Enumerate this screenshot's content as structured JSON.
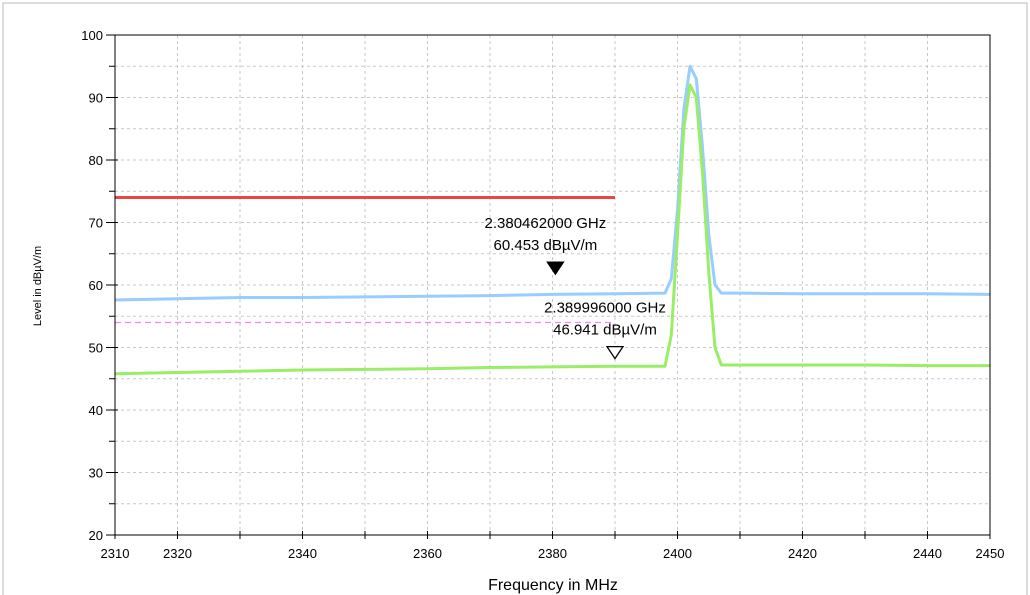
{
  "chart_data": {
    "type": "line",
    "xlabel": "Frequency in MHz",
    "ylabel": "Level in dBµV/m",
    "xlim": [
      2310,
      2450
    ],
    "ylim": [
      20,
      100
    ],
    "x_ticks": [
      2310,
      2320,
      2340,
      2360,
      2380,
      2400,
      2420,
      2440,
      2450
    ],
    "x_tick_labels": [
      "2310",
      "2320",
      "2340",
      "2360",
      "2380",
      "2400",
      "2420",
      "2440",
      "2450"
    ],
    "y_ticks": [
      20,
      30,
      40,
      50,
      60,
      70,
      80,
      90,
      100
    ],
    "y_tick_labels": [
      "20",
      "30",
      "40",
      "50",
      "60",
      "70",
      "80",
      "90",
      "100"
    ],
    "grid": true,
    "series": [
      {
        "color": "#99ccff",
        "x": [
          2310,
          2320,
          2330,
          2340,
          2350,
          2360,
          2370,
          2380,
          2390,
          2398,
          2399,
          2400,
          2401,
          2402,
          2403,
          2404,
          2405,
          2406,
          2407,
          2410,
          2420,
          2430,
          2440,
          2450
        ],
        "y": [
          57.6,
          57.8,
          58.0,
          58.0,
          58.1,
          58.2,
          58.3,
          58.5,
          58.6,
          58.7,
          61,
          72,
          88,
          95,
          93,
          82,
          68,
          60,
          58.7,
          58.7,
          58.6,
          58.6,
          58.6,
          58.5
        ]
      },
      {
        "color": "#99ee66",
        "x": [
          2310,
          2320,
          2330,
          2340,
          2350,
          2360,
          2370,
          2380,
          2390,
          2398,
          2399,
          2400,
          2401,
          2402,
          2403,
          2404,
          2405,
          2406,
          2407,
          2410,
          2420,
          2430,
          2440,
          2450
        ],
        "y": [
          45.8,
          46.0,
          46.2,
          46.4,
          46.5,
          46.6,
          46.8,
          46.9,
          47.0,
          47.0,
          52,
          68,
          85,
          92,
          90,
          78,
          62,
          50,
          47.2,
          47.2,
          47.2,
          47.2,
          47.1,
          47.1
        ]
      }
    ],
    "limit_lines": [
      {
        "color": "#ee4444",
        "style": "solid",
        "x": [
          2310,
          2390
        ],
        "y": 74
      },
      {
        "color": "#ee88ee",
        "style": "dashed",
        "x": [
          2310,
          2390
        ],
        "y": 54
      }
    ],
    "markers": [
      {
        "x": 2380.462,
        "y": 60.453,
        "filled": true,
        "label_line1": "2.380462000 GHz",
        "label_line2": "60.453 dBµV/m"
      },
      {
        "x": 2389.996,
        "y": 46.941,
        "filled": false,
        "label_line1": "2.389996000 GHz",
        "label_line2": "46.941 dBµV/m"
      }
    ]
  }
}
